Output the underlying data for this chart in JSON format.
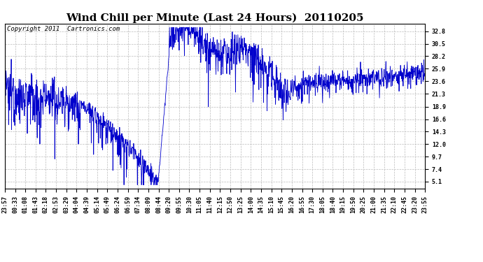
{
  "title": "Wind Chill per Minute (Last 24 Hours)  20110205",
  "copyright_text": "Copyright 2011  Cartronics.com",
  "line_color": "#0000CC",
  "background_color": "#ffffff",
  "plot_background": "#ffffff",
  "grid_color": "#bbbbbb",
  "yticks": [
    5.1,
    7.4,
    9.7,
    12.0,
    14.3,
    16.6,
    18.9,
    21.3,
    23.6,
    25.9,
    28.2,
    30.5,
    32.8
  ],
  "ylim": [
    3.8,
    34.2
  ],
  "xtick_labels": [
    "23:57",
    "00:33",
    "01:08",
    "01:43",
    "02:18",
    "02:53",
    "03:29",
    "04:04",
    "04:39",
    "05:14",
    "05:49",
    "06:24",
    "06:59",
    "07:34",
    "08:09",
    "08:44",
    "09:20",
    "09:55",
    "10:30",
    "11:05",
    "11:40",
    "12:15",
    "12:50",
    "13:25",
    "14:00",
    "14:35",
    "15:10",
    "15:45",
    "16:20",
    "16:55",
    "17:30",
    "18:05",
    "18:40",
    "19:15",
    "19:50",
    "20:25",
    "21:00",
    "21:35",
    "22:10",
    "22:45",
    "23:20",
    "23:55"
  ],
  "figsize": [
    6.9,
    3.75
  ],
  "dpi": 100,
  "title_fontsize": 11,
  "axis_fontsize": 6,
  "copyright_fontsize": 6.5
}
